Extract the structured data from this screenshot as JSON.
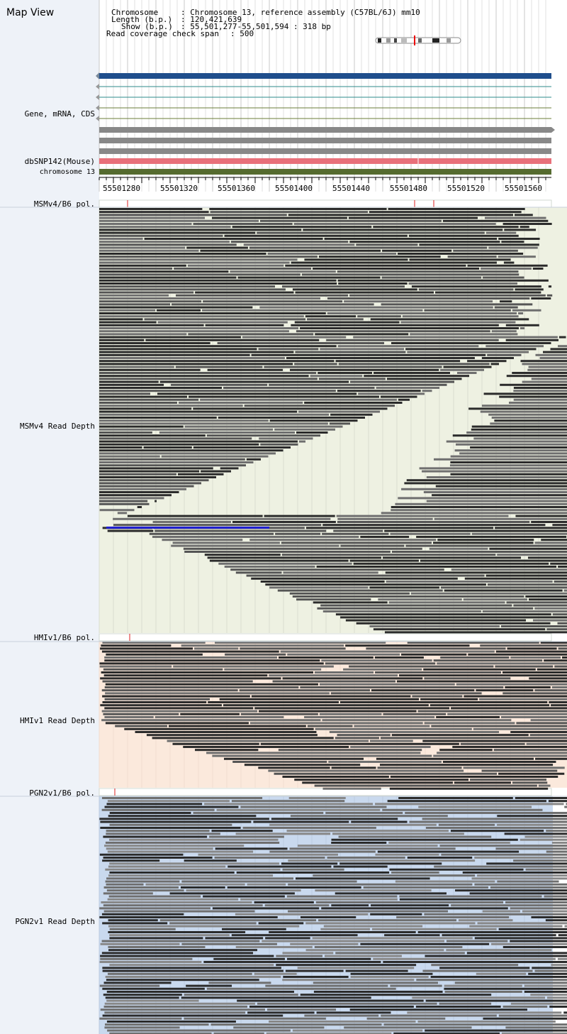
{
  "header": {
    "title": "Map View",
    "chromosome_key": "Chromosome",
    "chromosome_value": ": Chromosome 13, reference assembly (C57BL/6J) mm10",
    "length_key": "Length (b.p.)",
    "length_value": ": 120,421,639",
    "show_key": "Show (b.p.)",
    "show_value": ": 55,501,277-55,501,594 : 318 bp",
    "coverage_key": "Read coverage check span",
    "coverage_value": ": 500"
  },
  "tracks": {
    "gene_label": "Gene, mRNA, CDS",
    "dbsnp_label": "dbSNP142(Mouse)",
    "chrom_label": "chromosome 13",
    "msm_pol_label": "MSMv4/B6 pol.",
    "msm_depth_label": "MSMv4 Read Depth",
    "hmi_pol_label": "HMIv1/B6 pol.",
    "hmi_depth_label": "HMIv1 Read Depth",
    "pgn_pol_label": "PGN2v1/B6 pol.",
    "pgn_depth_label": "PGN2v1 Read Depth"
  },
  "ruler": {
    "ticks": [
      "55501280",
      "55501320",
      "55501360",
      "55501400",
      "55501440",
      "55501480",
      "55501520",
      "55501560"
    ]
  },
  "colors": {
    "gene_blue": "#1f4e8c",
    "snp_pink": "#e8707a",
    "chrom_green": "#556b2f",
    "msm_bg": "#eef1e2",
    "hmi_bg": "#fbe9dc",
    "pgn_bg": "#c9d9ee",
    "read_dark": "#333333",
    "read_grey": "#777777"
  }
}
